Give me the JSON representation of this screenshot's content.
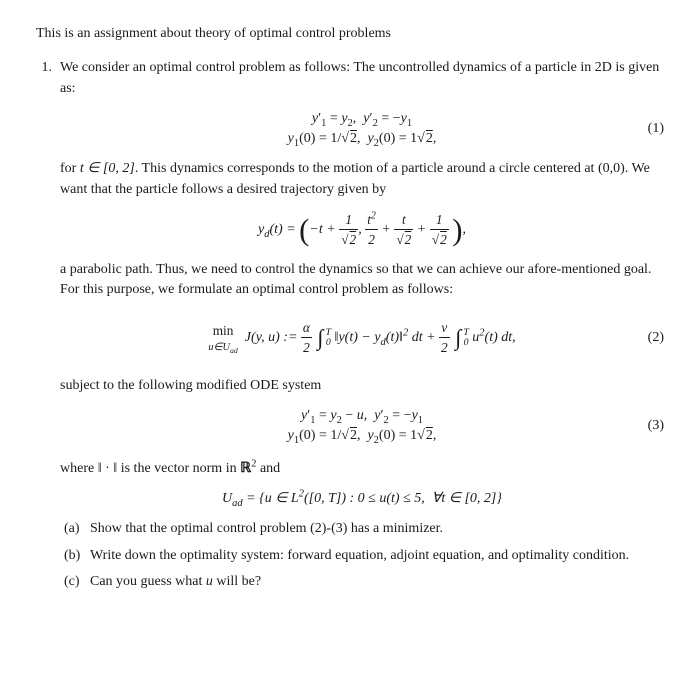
{
  "intro": "This is an assignment about theory of optimal control problems",
  "item1": {
    "num": "1.",
    "lead": "We consider an optimal control problem as follows: The uncontrolled dynamics of a particle in 2D is given as:",
    "eq1_line1": "y′₁ = y₂,  y′₂ = −y₁",
    "eq1_line2_a": "y₁(0) = 1/",
    "eq1_line2_root": "2",
    "eq1_line2_b": ",  y₂(0) = 1",
    "eq1_line2_root2": "2",
    "eq1_line2_c": ",",
    "eq1_num": "(1)",
    "para2a": "for ",
    "para2_t": "t ∈ [0, 2]",
    "para2b": ". This dynamics corresponds to the motion of a particle around a circle centered at (0,0). We want that the particle follows a desired trajectory given by",
    "eq_yd_lhs": "y_d(t) = ",
    "para3": "a parabolic path. Thus, we need to control the dynamics so that we can achieve our afore-mentioned goal. For this purpose, we formulate an optimal control problem as follows:",
    "eq2_num": "(2)",
    "eq2_mintext": "min",
    "eq2_sub": "u∈U_ad",
    "eq2_J": "J(y, u) := ",
    "eq2_alpha": "α",
    "eq2_two": "2",
    "eq2_nu": "ν",
    "eq2_integrand1a": "‖y(t) − y_d(t)‖",
    "eq2_integrand1b": " dt + ",
    "eq2_integrand2": "u²(t) dt,",
    "para4": "subject to the following modified ODE system",
    "eq3_line1": "y′₁ = y₂ − u,  y′₂ = −y₁",
    "eq3_line2a": "y₁(0) = 1/",
    "eq3_line2root": "2",
    "eq3_line2b": ",  y₂(0) = 1",
    "eq3_line2root2": "2",
    "eq3_line2c": ",",
    "eq3_num": "(3)",
    "para5a": "where ‖ · ‖ is the vector norm in ",
    "para5R": "ℝ",
    "para5b": "² and",
    "eq_uad_lhs": "U_ad = {u ∈ L²([0, T]) : 0 ≤ u(t) ≤ 5,  ∀t ∈ [0, 2]}",
    "sub_a_num": "(a)",
    "sub_a": "Show that the optimal control problem (2)-(3) has a minimizer.",
    "sub_b_num": "(b)",
    "sub_b": "Write down the optimality system: forward equation, adjoint equation, and optimality condition.",
    "sub_c_num": "(c)",
    "sub_c": "Can you guess what u will be?",
    "T": "T",
    "zero": "0",
    "sq": "2"
  }
}
